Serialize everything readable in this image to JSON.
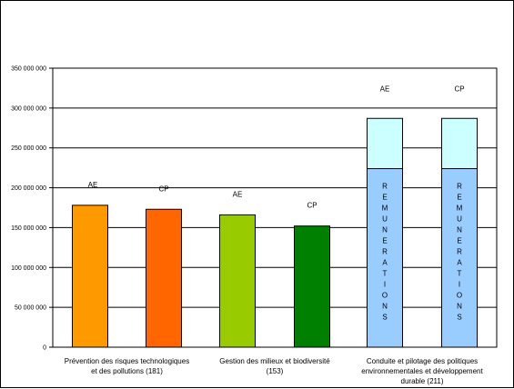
{
  "chart_data": {
    "type": "bar",
    "ylim": [
      0,
      350000000
    ],
    "yticks": [
      0,
      50000000,
      100000000,
      150000000,
      200000000,
      250000000,
      300000000,
      350000000
    ],
    "ytick_labels": [
      "0",
      "50 000 000",
      "100 000 000",
      "150 000 000",
      "200 000 000",
      "250 000 000",
      "300 000 000",
      "350 000 000"
    ],
    "groups": [
      {
        "label_lines": [
          "Prévention des risques technologiques",
          "et des pollutions (181)"
        ],
        "bars": [
          {
            "label": "AE",
            "value": 178000000,
            "color": "#ff9900"
          },
          {
            "label": "CP",
            "value": 173000000,
            "color": "#ff6600"
          }
        ]
      },
      {
        "label_lines": [
          "Gestion des milieux et biodiversité",
          "(153)"
        ],
        "bars": [
          {
            "label": "AE",
            "value": 166000000,
            "color": "#99cc00"
          },
          {
            "label": "CP",
            "value": 152000000,
            "color": "#008000"
          }
        ]
      },
      {
        "label_lines": [
          "Conduite et pilotage des politiques",
          "environnementales et développement",
          "durable (211)"
        ],
        "bars": [
          {
            "label": "AE",
            "stack": [
              {
                "value": 224000000,
                "color": "#99ccff",
                "inner_label": "REMUNERATIONS"
              },
              {
                "value": 63000000,
                "color": "#ccffff"
              }
            ]
          },
          {
            "label": "CP",
            "stack": [
              {
                "value": 224000000,
                "color": "#99ccff",
                "inner_label": "REMUNERATIONS"
              },
              {
                "value": 63000000,
                "color": "#ccffff"
              }
            ]
          }
        ]
      }
    ],
    "grid": true
  }
}
